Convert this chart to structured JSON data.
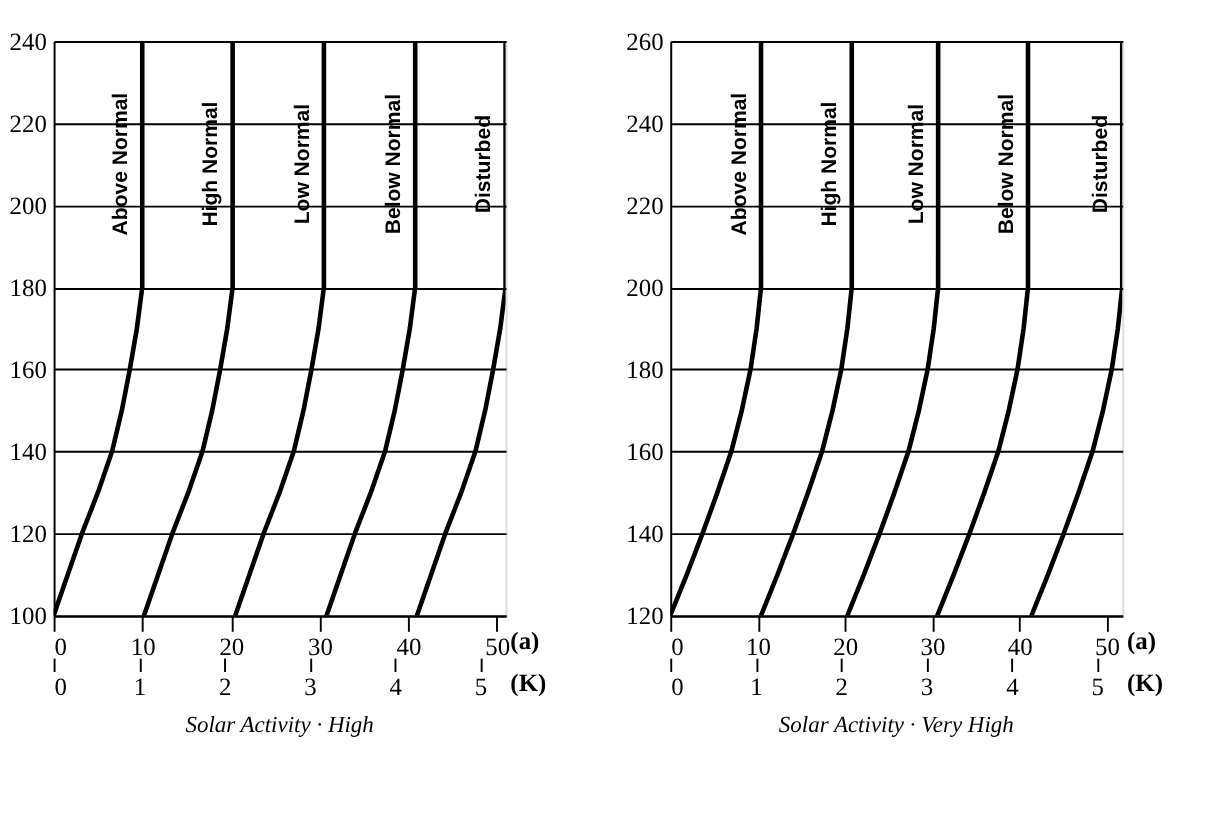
{
  "chart_data": [
    {
      "type": "line",
      "title": "Solar Activity · High",
      "xlabel": "(a)",
      "xlim": [
        0,
        51
      ],
      "xticks": [
        0,
        10,
        20,
        30,
        40,
        50
      ],
      "x2label": "(K)",
      "x2lim": [
        0,
        5.3
      ],
      "x2ticks": [
        0,
        1,
        2,
        3,
        4,
        5
      ],
      "ylim": [
        100,
        240
      ],
      "yticks": [
        100,
        120,
        140,
        160,
        180,
        200,
        220,
        240
      ],
      "grid": "y",
      "marker": "none",
      "line_style": "solid",
      "series": [
        {
          "name": "Above Normal",
          "color": "#000000",
          "x": [
            0,
            1.6,
            3.2,
            5,
            6.6,
            7.7,
            8.6,
            9.4,
            10,
            10
          ],
          "values": [
            100,
            110,
            120,
            130,
            140,
            150,
            160,
            170,
            180,
            240
          ]
        },
        {
          "name": "High Normal",
          "color": "#000000",
          "x": [
            10.2,
            11.8,
            13.4,
            15.2,
            16.8,
            17.9,
            18.8,
            19.6,
            20.2,
            20.2
          ],
          "values": [
            100,
            110,
            120,
            130,
            140,
            150,
            160,
            170,
            180,
            240
          ]
        },
        {
          "name": "Low Normal",
          "color": "#000000",
          "x": [
            20.5,
            22.1,
            23.7,
            25.5,
            27.1,
            28.2,
            29.1,
            29.9,
            30.5,
            30.5
          ],
          "values": [
            100,
            110,
            120,
            130,
            140,
            150,
            160,
            170,
            180,
            240
          ]
        },
        {
          "name": "Below Normal",
          "color": "#000000",
          "x": [
            30.8,
            32.4,
            34,
            35.8,
            37.4,
            38.5,
            39.4,
            40.2,
            40.8,
            40.8
          ],
          "values": [
            100,
            110,
            120,
            130,
            140,
            150,
            160,
            170,
            180,
            240
          ]
        },
        {
          "name": "Disturbed",
          "color": "#000000",
          "x": [
            41,
            42.6,
            44.2,
            46,
            47.6,
            48.7,
            49.6,
            50.4,
            51,
            51
          ],
          "values": [
            100,
            110,
            120,
            130,
            140,
            150,
            160,
            170,
            180,
            240
          ]
        }
      ]
    },
    {
      "type": "line",
      "title": "Solar Activity · Very High",
      "xlabel": "(a)",
      "xlim": [
        0,
        51.8
      ],
      "xticks": [
        0,
        10,
        20,
        30,
        40,
        50
      ],
      "x2label": "(K)",
      "x2lim": [
        0,
        5.3
      ],
      "x2ticks": [
        0,
        1,
        2,
        3,
        4,
        5
      ],
      "ylim": [
        120,
        260
      ],
      "yticks": [
        120,
        140,
        160,
        180,
        200,
        220,
        240,
        260
      ],
      "grid": "y",
      "marker": "none",
      "line_style": "solid",
      "series": [
        {
          "name": "Above Normal",
          "color": "#000000",
          "x": [
            0,
            1.9,
            3.7,
            5.4,
            7,
            8.2,
            9.2,
            9.9,
            10.4,
            10.4
          ],
          "values": [
            120,
            130,
            140,
            150,
            160,
            170,
            180,
            190,
            200,
            260
          ]
        },
        {
          "name": "High Normal",
          "color": "#000000",
          "x": [
            10.4,
            12.3,
            14.1,
            15.8,
            17.4,
            18.6,
            19.6,
            20.3,
            20.8,
            20.8
          ],
          "values": [
            120,
            130,
            140,
            150,
            160,
            170,
            180,
            190,
            200,
            260
          ]
        },
        {
          "name": "Low Normal",
          "color": "#000000",
          "x": [
            20.3,
            22.2,
            24,
            25.7,
            27.3,
            28.5,
            29.5,
            30.2,
            30.7,
            30.7
          ],
          "values": [
            120,
            130,
            140,
            150,
            160,
            170,
            180,
            190,
            200,
            260
          ]
        },
        {
          "name": "Below Normal",
          "color": "#000000",
          "x": [
            30.6,
            32.5,
            34.3,
            36,
            37.6,
            38.8,
            39.8,
            40.5,
            41,
            41
          ],
          "values": [
            120,
            130,
            140,
            150,
            160,
            170,
            180,
            190,
            200,
            260
          ]
        },
        {
          "name": "Disturbed",
          "color": "#000000",
          "x": [
            41.4,
            43.3,
            45.1,
            46.8,
            48.4,
            49.6,
            50.6,
            51.3,
            51.8,
            51.8
          ],
          "values": [
            120,
            130,
            140,
            150,
            160,
            170,
            180,
            190,
            200,
            260
          ]
        }
      ]
    }
  ]
}
